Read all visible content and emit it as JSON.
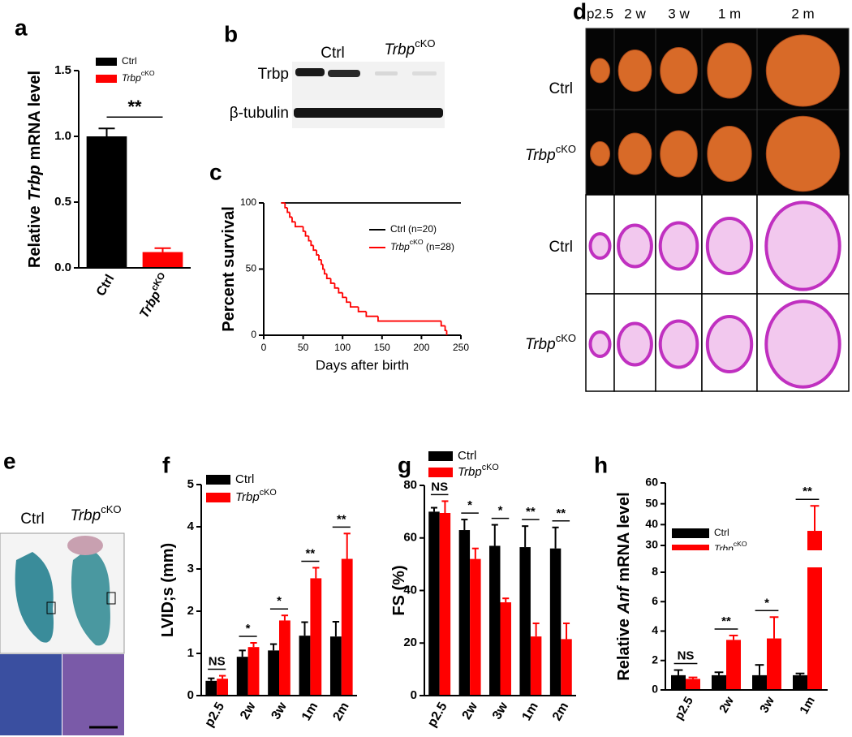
{
  "panel_labels": [
    "a",
    "b",
    "c",
    "d",
    "e",
    "f",
    "g",
    "h"
  ],
  "blot": {
    "columns": [
      {
        "name": "Ctrl"
      },
      {
        "name": "Trbp",
        "sup": "cKO"
      }
    ],
    "rows": [
      "Trbp",
      "β-tubulin"
    ]
  },
  "hearts": {
    "columns": [
      "p2.5",
      "2 w",
      "3 w",
      "1 m",
      "2 m"
    ],
    "rows": [
      {
        "name": "Ctrl"
      },
      {
        "name": "Trbp",
        "sup": "cKO"
      },
      {
        "name": "Ctrl"
      },
      {
        "name": "Trbp",
        "sup": "cKO"
      }
    ]
  },
  "histology": {
    "columns": [
      {
        "name": "Ctrl"
      },
      {
        "name": "Trbp",
        "sup": "cKO"
      }
    ]
  },
  "chart_data": [
    {
      "type": "bar",
      "ylabel": {
        "pre": "Relative",
        "gene": "Trbp",
        "post": "mRNA level"
      },
      "categories": [
        "Ctrl",
        "Trbp"
      ],
      "category_sup": [
        null,
        "cKO"
      ],
      "values": [
        1.0,
        0.12
      ],
      "errors": [
        0.06,
        0.03
      ],
      "colors": [
        "#000000",
        "#ff0000"
      ],
      "legend": [
        {
          "name": "Ctrl",
          "color": "#000000"
        },
        {
          "name": "Trbp",
          "sup": "cKO",
          "color": "#ff0000"
        }
      ],
      "significance": [
        "**"
      ],
      "ylim": [
        0,
        1.5
      ],
      "yticks": [
        {
          "value": 0,
          "label": "0.0"
        },
        0.5,
        {
          "value": 1,
          "label": "1.0"
        },
        1.5
      ]
    },
    {
      "type": "line",
      "ylabel": "Percent survival",
      "xlabel": "Days after birth",
      "series": [
        {
          "name": "Ctrl (n=20)",
          "color": "#000000",
          "x": [
            22,
            250
          ],
          "values": [
            100,
            100
          ]
        },
        {
          "name": "Trbp",
          "sup": "cKO",
          "rest": " (n=28)",
          "color": "#ff0000",
          "x": [
            22,
            27,
            30,
            33,
            36,
            40,
            50,
            53,
            57,
            60,
            63,
            67,
            70,
            73,
            75,
            77,
            80,
            85,
            90,
            95,
            100,
            105,
            110,
            120,
            130,
            145,
            225,
            230,
            232
          ],
          "values": [
            100,
            96.4,
            92.9,
            89.3,
            85.7,
            82.1,
            78.6,
            75,
            71.4,
            67.9,
            64.3,
            60.7,
            57.1,
            53.6,
            50,
            46.4,
            42.9,
            39.3,
            35.7,
            32.1,
            28.6,
            25,
            21.4,
            17.9,
            14.3,
            10.7,
            7.1,
            3.6,
            0
          ]
        }
      ],
      "xlim": [
        0,
        250
      ],
      "xticks": [
        0,
        50,
        100,
        150,
        200,
        250
      ],
      "ylim": [
        0,
        100
      ],
      "yticks": [
        0,
        50,
        100
      ]
    },
    {
      "type": "bar",
      "ylabel": "LVID;s (mm)",
      "categories": [
        "p2.5",
        "2w",
        "3w",
        "1m",
        "2m"
      ],
      "series": [
        {
          "name": "Ctrl",
          "color": "#000000",
          "values": [
            0.35,
            0.92,
            1.07,
            1.42,
            1.4
          ],
          "errors": [
            0.06,
            0.15,
            0.15,
            0.32,
            0.35
          ]
        },
        {
          "name": "Trbp",
          "sup": "cKO",
          "color": "#ff0000",
          "values": [
            0.4,
            1.15,
            1.78,
            2.78,
            3.24
          ],
          "errors": [
            0.07,
            0.1,
            0.12,
            0.25,
            0.6
          ]
        }
      ],
      "significance": [
        "NS",
        "*",
        "*",
        "**",
        "**"
      ],
      "ylim": [
        0,
        5
      ],
      "yticks": [
        0,
        1,
        2,
        3,
        4,
        5
      ]
    },
    {
      "type": "bar",
      "ylabel": "FS (%)",
      "categories": [
        "p2.5",
        "2w",
        "3w",
        "1m",
        "2m"
      ],
      "series": [
        {
          "name": "Ctrl",
          "color": "#000000",
          "values": [
            70,
            63,
            57,
            56.5,
            56
          ],
          "errors": [
            1.5,
            4,
            8,
            8,
            8
          ]
        },
        {
          "name": "Trbp",
          "sup": "cKO",
          "color": "#ff0000",
          "values": [
            69.5,
            52,
            35.5,
            22.5,
            21.5
          ],
          "errors": [
            4.5,
            4,
            1.5,
            5,
            6
          ]
        }
      ],
      "significance": [
        "NS",
        "*",
        "*",
        "**",
        "**"
      ],
      "ylim": [
        0,
        80
      ],
      "yticks": [
        0,
        20,
        40,
        60,
        80
      ]
    },
    {
      "type": "bar",
      "ylabel": {
        "pre": "Relative",
        "gene": "Anf",
        "post": "mRNA level"
      },
      "categories": [
        "p2.5",
        "2w",
        "3w",
        "1m"
      ],
      "series": [
        {
          "name": "Ctrl",
          "color": "#000000",
          "values": [
            1,
            1,
            1,
            1
          ],
          "errors": [
            0.35,
            0.2,
            0.7,
            0.12
          ]
        },
        {
          "name": "Trbp",
          "sup": "cKO",
          "color": "#ff0000",
          "values": [
            0.75,
            3.4,
            3.5,
            37
          ],
          "errors": [
            0.1,
            0.3,
            1.45,
            12
          ]
        }
      ],
      "significance": [
        "NS",
        "**",
        "*",
        "**"
      ],
      "axis_break": [
        8,
        30
      ],
      "ylim": [
        0,
        60
      ],
      "yticks": [
        0,
        2,
        4,
        6,
        8,
        30,
        40,
        50,
        60
      ]
    }
  ]
}
